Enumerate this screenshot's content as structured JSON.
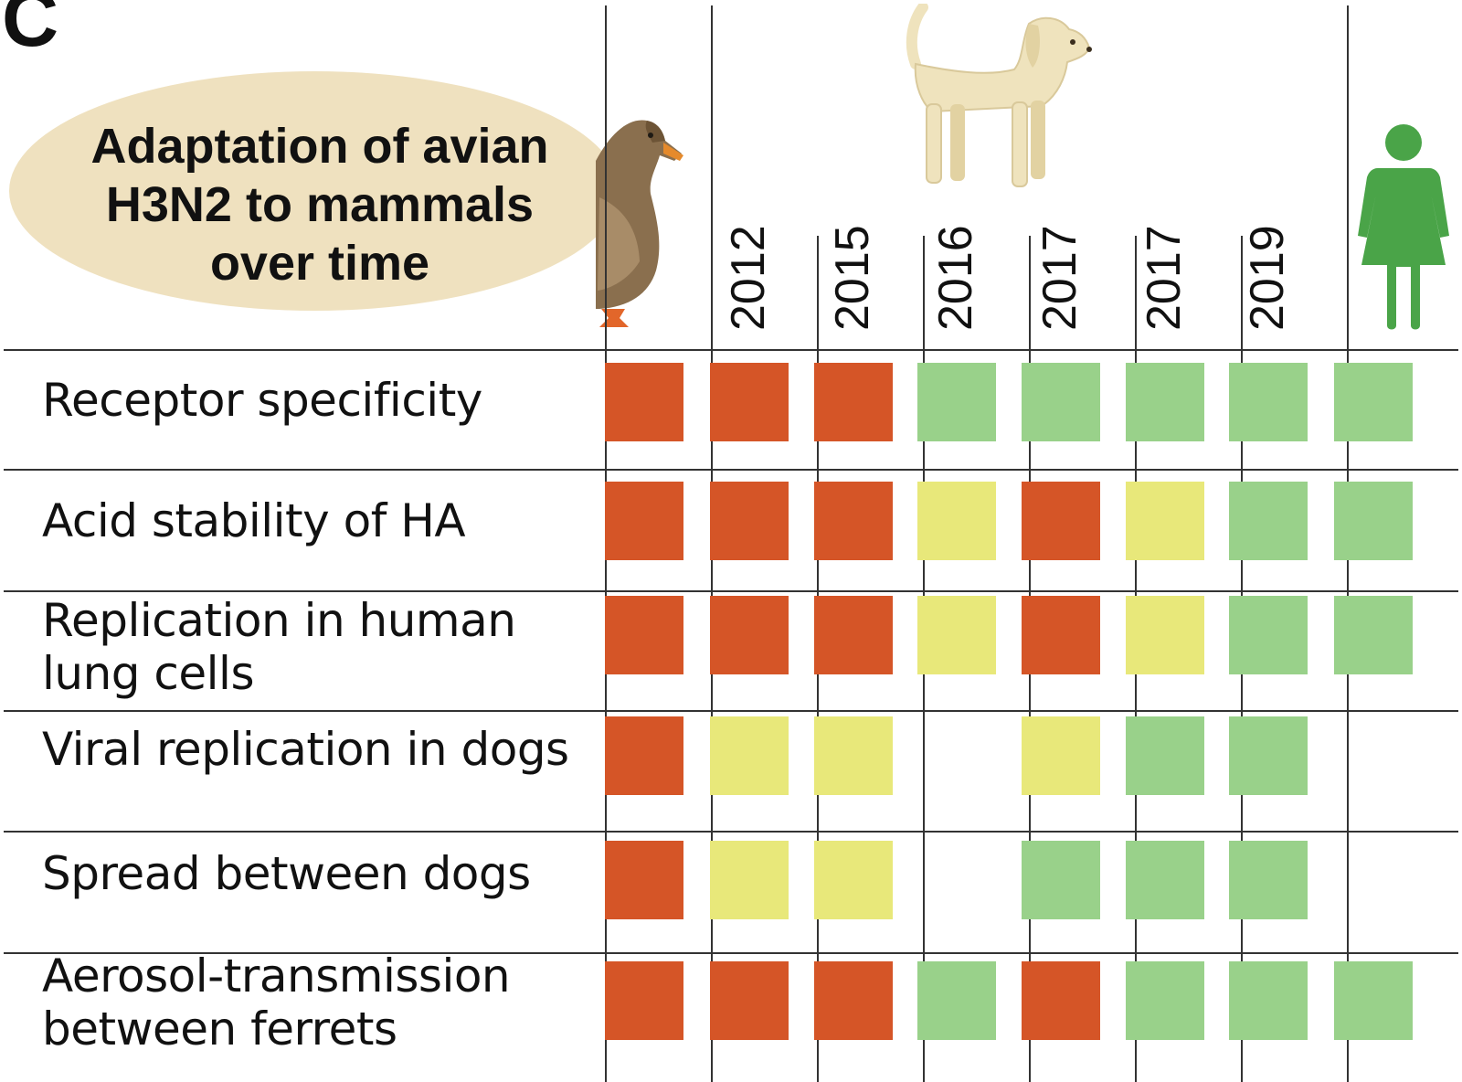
{
  "panel_letter": "C",
  "title_lines": [
    "Adaptation of avian",
    "H3N2 to mammals",
    "over time"
  ],
  "icons": {
    "duck": "duck-icon",
    "dog": "dog-icon",
    "human": "human-figure-icon"
  },
  "columns": [
    {
      "key": "avian",
      "label": "",
      "icon": "duck-icon"
    },
    {
      "key": "2012",
      "label": "2012"
    },
    {
      "key": "2015",
      "label": "2015"
    },
    {
      "key": "2016",
      "label": "2016"
    },
    {
      "key": "2017a",
      "label": "2017"
    },
    {
      "key": "2017b",
      "label": "2017"
    },
    {
      "key": "2019",
      "label": "2019"
    },
    {
      "key": "human",
      "label": "",
      "icon": "human-figure-icon"
    }
  ],
  "rows": [
    {
      "label_lines": [
        "Receptor specificity"
      ],
      "cells": [
        "red",
        "red",
        "red",
        "green",
        "green",
        "green",
        "green",
        "green"
      ]
    },
    {
      "label_lines": [
        "Acid stability of HA"
      ],
      "cells": [
        "red",
        "red",
        "red",
        "yellow",
        "red",
        "yellow",
        "green",
        "green"
      ]
    },
    {
      "label_lines": [
        "Replication in human",
        "lung cells"
      ],
      "cells": [
        "red",
        "red",
        "red",
        "yellow",
        "red",
        "yellow",
        "green",
        "green"
      ]
    },
    {
      "label_lines": [
        "Viral replication in dogs"
      ],
      "cells": [
        "red",
        "yellow",
        "yellow",
        "none",
        "yellow",
        "green",
        "green",
        "none"
      ]
    },
    {
      "label_lines": [
        "Spread between dogs"
      ],
      "cells": [
        "red",
        "yellow",
        "yellow",
        "none",
        "green",
        "green",
        "green",
        "none"
      ]
    },
    {
      "label_lines": [
        "Aerosol-transmission",
        "between ferrets"
      ],
      "cells": [
        "red",
        "red",
        "red",
        "green",
        "red",
        "green",
        "green",
        "green"
      ]
    }
  ],
  "colors": {
    "red": "#d55527",
    "yellow": "#e8e87a",
    "green": "#99d18a",
    "title_bg": "#efe1bf",
    "human_icon": "#4aa448",
    "grid": "#333333"
  }
}
